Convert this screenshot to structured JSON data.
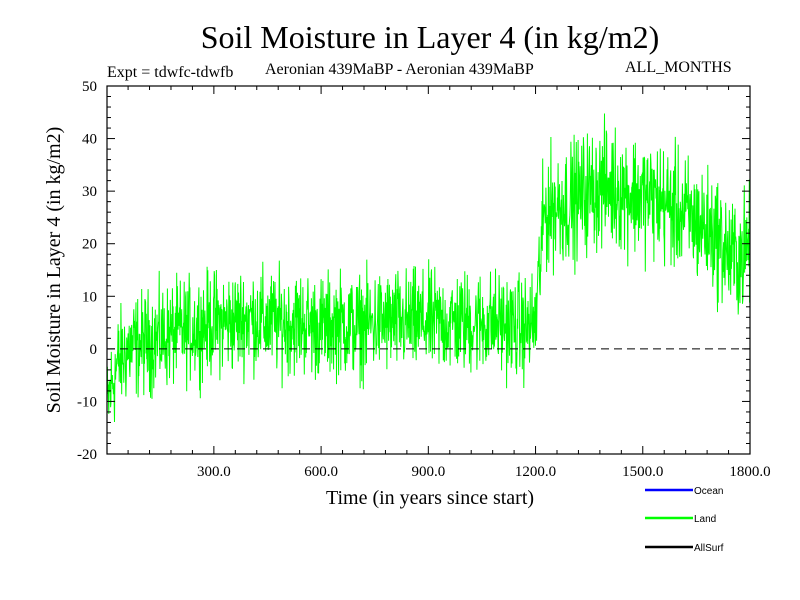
{
  "chart_data": {
    "type": "line",
    "title": "Soil Moisture in Layer 4 (in kg/m2)",
    "subtitle_left": "Expt = tdwfc-tdwfb",
    "subtitle_mid": "Aeronian 439MaBP - Aeronian 439MaBP",
    "subtitle_right": "ALL_MONTHS",
    "xlabel": "Time (in years since start)",
    "ylabel": "Soil Moisture in Layer 4 (in kg/m2)",
    "xlim": [
      1,
      1800
    ],
    "ylim": [
      -20,
      50
    ],
    "x_ticks": [
      300,
      600,
      900,
      1200,
      1500,
      1800
    ],
    "x_tick_labels": [
      "300.0",
      "600.0",
      "900.0",
      "1200.0",
      "1500.0",
      "1800.0"
    ],
    "y_ticks": [
      -20,
      -10,
      0,
      10,
      20,
      30,
      40,
      50
    ],
    "y_tick_labels": [
      "-20",
      "-10",
      "0",
      "10",
      "20",
      "30",
      "40",
      "50"
    ],
    "reference_line": 0,
    "series": [
      {
        "name": "Land",
        "color": "#00ff00",
        "note": "annual-resolution noisy series; anchor points of running mean and spread",
        "x": [
          1,
          10,
          30,
          60,
          100,
          150,
          200,
          250,
          300,
          350,
          400,
          450,
          500,
          550,
          600,
          650,
          700,
          750,
          800,
          850,
          900,
          950,
          1000,
          1050,
          1100,
          1150,
          1180,
          1200,
          1210,
          1225,
          1250,
          1300,
          1350,
          1400,
          1450,
          1500,
          1550,
          1600,
          1650,
          1700,
          1720,
          1750,
          1780,
          1800
        ],
        "mean": [
          -12,
          -8,
          -3,
          0,
          1,
          2,
          3,
          4,
          5,
          5,
          6,
          5,
          5,
          5,
          4,
          5,
          4,
          5,
          5,
          5,
          5,
          5,
          5,
          5,
          5,
          4,
          4,
          5,
          14,
          26,
          27,
          28,
          30,
          31,
          30,
          29,
          28,
          26,
          24,
          22,
          20,
          17,
          18,
          20
        ],
        "spread": [
          6,
          6,
          6,
          6,
          6,
          6,
          6,
          6,
          6,
          6,
          6,
          6,
          6,
          6,
          6,
          6,
          6,
          6,
          6,
          6,
          6,
          6,
          6,
          6,
          6,
          6,
          6,
          6,
          7,
          7,
          7,
          7,
          7,
          7,
          7,
          7,
          7,
          7,
          7,
          7,
          7,
          7,
          7,
          7
        ]
      },
      {
        "name": "Ocean",
        "color": "#0000ff",
        "values": []
      },
      {
        "name": "AllSurf",
        "color": "#000000",
        "values": []
      }
    ],
    "legend": [
      {
        "label": "Ocean",
        "color": "#0000ff"
      },
      {
        "label": "Land",
        "color": "#00ff00"
      },
      {
        "label": "AllSurf",
        "color": "#000000"
      }
    ],
    "legend_position": "bottom-right"
  }
}
